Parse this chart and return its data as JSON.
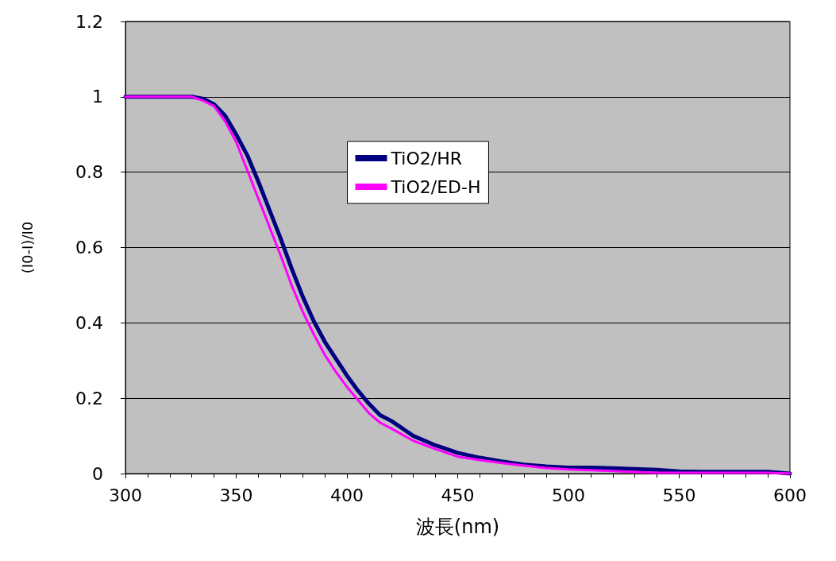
{
  "chart_data": {
    "type": "line",
    "xlabel": "波長(nm)",
    "ylabel": "(I0-I)/I0",
    "x": [
      300,
      330,
      335,
      340,
      345,
      350,
      355,
      360,
      365,
      370,
      375,
      380,
      385,
      390,
      395,
      400,
      405,
      410,
      415,
      420,
      430,
      440,
      450,
      460,
      470,
      480,
      490,
      500,
      510,
      520,
      530,
      540,
      550,
      560,
      570,
      580,
      590,
      600
    ],
    "series": [
      {
        "name": "TiO2/HR",
        "color": "#000080",
        "values": [
          1,
          1,
          0.995,
          0.98,
          0.95,
          0.9,
          0.845,
          0.775,
          0.7,
          0.625,
          0.545,
          0.47,
          0.405,
          0.35,
          0.305,
          0.26,
          0.22,
          0.185,
          0.155,
          0.14,
          0.1,
          0.075,
          0.055,
          0.042,
          0.032,
          0.024,
          0.019,
          0.016,
          0.016,
          0.014,
          0.012,
          0.01,
          0.006,
          0.005,
          0.005,
          0.005,
          0.005,
          0
        ]
      },
      {
        "name": "TiO2/ED-H",
        "color": "#ff00ff",
        "values": [
          1,
          1,
          0.99,
          0.975,
          0.935,
          0.88,
          0.805,
          0.73,
          0.655,
          0.58,
          0.5,
          0.43,
          0.37,
          0.315,
          0.27,
          0.23,
          0.195,
          0.16,
          0.135,
          0.12,
          0.087,
          0.065,
          0.045,
          0.036,
          0.028,
          0.021,
          0.015,
          0.011,
          0.009,
          0.007,
          0.004,
          0.002,
          0.002,
          0.002,
          0.002,
          0.002,
          0.002,
          0
        ]
      }
    ],
    "xlim": [
      300,
      600
    ],
    "xticks": [
      300,
      350,
      400,
      450,
      500,
      550,
      600
    ],
    "ylim": [
      0,
      1.2
    ],
    "yticks": [
      0,
      0.2,
      0.4,
      0.6,
      0.8,
      1,
      1.2
    ],
    "grid": "y",
    "legend": "top",
    "marker": "none",
    "line_style": "solid"
  }
}
